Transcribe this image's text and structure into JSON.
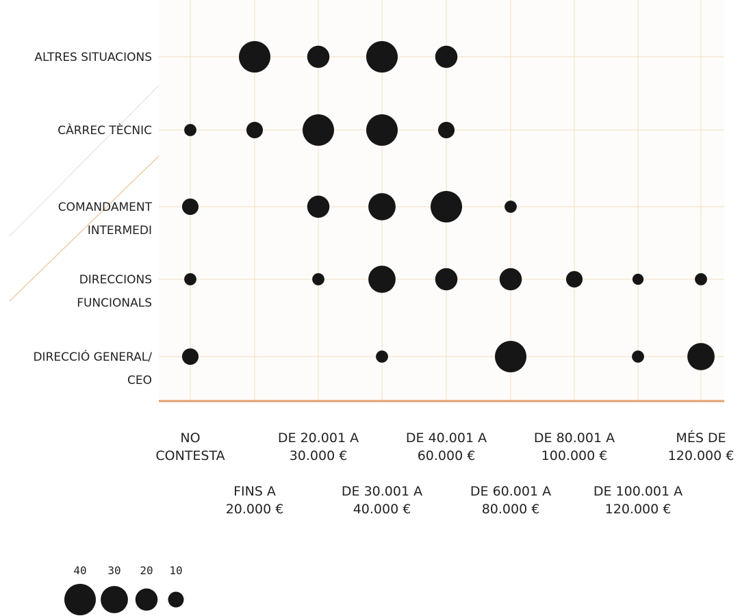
{
  "chart_data": {
    "type": "scatter",
    "subtype": "bubble-matrix",
    "title": "",
    "xlabel": "",
    "ylabel": "",
    "x_categories": [
      [
        "NO",
        "CONTESTA"
      ],
      [
        "FINS A",
        "20.000 €"
      ],
      [
        "DE 20.001 A",
        "30.000 €"
      ],
      [
        "DE 30.001 A",
        "40.000 €"
      ],
      [
        "DE 40.001 A",
        "60.000 €"
      ],
      [
        "DE 60.001 A",
        "80.000 €"
      ],
      [
        "DE 80.001 A",
        "100.000 €"
      ],
      [
        "DE 100.001 A",
        "120.000 €"
      ],
      [
        "MÉS DE",
        "120.000 €"
      ]
    ],
    "y_categories": [
      [
        "ALTRES SITUACIONS"
      ],
      [
        "CÀRREC TÈCNIC"
      ],
      [
        "COMANDAMENT",
        "INTERMEDI"
      ],
      [
        "DIRECCIONS",
        "FUNCIONALS"
      ],
      [
        "DIRECCIÓ GENERAL/",
        "CEO"
      ]
    ],
    "points": [
      {
        "y": 0,
        "x": 1,
        "value": 40
      },
      {
        "y": 0,
        "x": 2,
        "value": 20
      },
      {
        "y": 0,
        "x": 3,
        "value": 40
      },
      {
        "y": 0,
        "x": 4,
        "value": 20
      },
      {
        "y": 1,
        "x": 0,
        "value": 6
      },
      {
        "y": 1,
        "x": 1,
        "value": 11
      },
      {
        "y": 1,
        "x": 2,
        "value": 40
      },
      {
        "y": 1,
        "x": 3,
        "value": 40
      },
      {
        "y": 1,
        "x": 4,
        "value": 11
      },
      {
        "y": 2,
        "x": 0,
        "value": 11
      },
      {
        "y": 2,
        "x": 2,
        "value": 20
      },
      {
        "y": 2,
        "x": 3,
        "value": 30
      },
      {
        "y": 2,
        "x": 4,
        "value": 40
      },
      {
        "y": 2,
        "x": 5,
        "value": 6
      },
      {
        "y": 3,
        "x": 0,
        "value": 6
      },
      {
        "y": 3,
        "x": 2,
        "value": 6
      },
      {
        "y": 3,
        "x": 3,
        "value": 30
      },
      {
        "y": 3,
        "x": 4,
        "value": 20
      },
      {
        "y": 3,
        "x": 5,
        "value": 20
      },
      {
        "y": 3,
        "x": 6,
        "value": 11
      },
      {
        "y": 3,
        "x": 7,
        "value": 5
      },
      {
        "y": 3,
        "x": 8,
        "value": 6
      },
      {
        "y": 4,
        "x": 0,
        "value": 11
      },
      {
        "y": 4,
        "x": 3,
        "value": 6
      },
      {
        "y": 4,
        "x": 5,
        "value": 40
      },
      {
        "y": 4,
        "x": 7,
        "value": 6
      },
      {
        "y": 4,
        "x": 8,
        "value": 30
      }
    ],
    "size_legend": {
      "values": [
        40,
        30,
        20,
        10
      ],
      "labels": [
        "40",
        "30",
        "20",
        "10"
      ]
    },
    "grid": true,
    "legend_position": "bottom-left"
  },
  "colors": {
    "background": "#fdfcfa",
    "grid": "#f5dcc0",
    "baseline": "#e0a070",
    "bubble": "#161616",
    "text": "#222222"
  }
}
